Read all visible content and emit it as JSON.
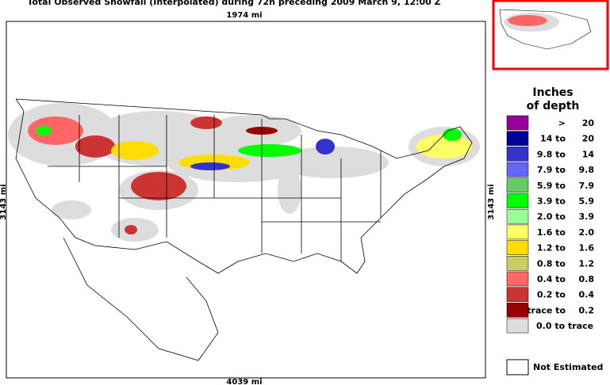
{
  "title": "Total Observed Snowfall (Interpolated) during 72h preceding 2009 March 9, 12:00 Z",
  "map": {
    "top_scale": "1974 mi",
    "bottom_scale": "4039 mi",
    "left_scale": "3143 mi",
    "right_scale": "3143 mi"
  },
  "legend": {
    "title_line1": "Inches",
    "title_line2": "of depth",
    "items": [
      {
        "from": ">",
        "to": "20",
        "color": "#990099"
      },
      {
        "from": "14 to",
        "to": "20",
        "color": "#000099"
      },
      {
        "from": "9.8 to",
        "to": "14",
        "color": "#3333cc"
      },
      {
        "from": "7.9 to",
        "to": "9.8",
        "color": "#6666ff"
      },
      {
        "from": "5.9 to",
        "to": "7.9",
        "color": "#66cc66"
      },
      {
        "from": "3.9 to",
        "to": "5.9",
        "color": "#00ff00"
      },
      {
        "from": "2.0 to",
        "to": "3.9",
        "color": "#99ff99"
      },
      {
        "from": "1.6 to",
        "to": "2.0",
        "color": "#ffff66"
      },
      {
        "from": "1.2 to",
        "to": "1.6",
        "color": "#ffdd00"
      },
      {
        "from": "0.8 to",
        "to": "1.2",
        "color": "#cccc66"
      },
      {
        "from": "0.4 to",
        "to": "0.8",
        "color": "#ff6666"
      },
      {
        "from": "0.2 to",
        "to": "0.4",
        "color": "#cc3333"
      },
      {
        "from": "trace to",
        "to": "0.2",
        "color": "#990000"
      },
      {
        "from": "0.0 to trace",
        "to": null,
        "color": "#dddddd"
      }
    ],
    "not_estimated": "Not Estimated"
  }
}
